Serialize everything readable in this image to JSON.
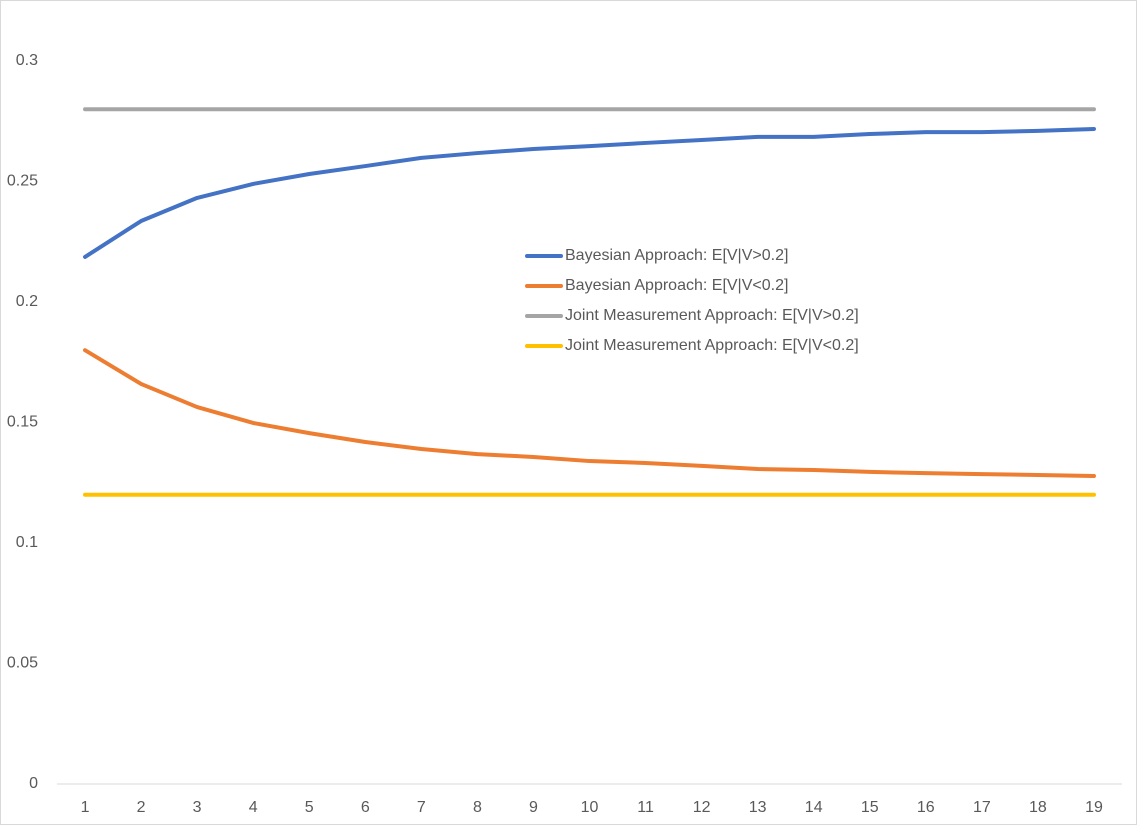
{
  "chart_data": {
    "type": "line",
    "categories": [
      1,
      2,
      3,
      4,
      5,
      6,
      7,
      8,
      9,
      10,
      11,
      12,
      13,
      14,
      15,
      16,
      17,
      18,
      19
    ],
    "series": [
      {
        "name": "Bayesian Approach: E[V|V>0.2]",
        "color": "#4472c4",
        "values": [
          0.2187,
          0.2336,
          0.2432,
          0.249,
          0.2531,
          0.2564,
          0.2598,
          0.2618,
          0.2635,
          0.2647,
          0.266,
          0.2672,
          0.2685,
          0.2685,
          0.2697,
          0.2705,
          0.2705,
          0.271,
          0.2718
        ]
      },
      {
        "name": "Bayesian Approach: E[V|V<0.2]",
        "color": "#ed7d31",
        "values": [
          0.18,
          0.166,
          0.1564,
          0.1498,
          0.1456,
          0.1419,
          0.139,
          0.1369,
          0.1357,
          0.134,
          0.1332,
          0.132,
          0.1307,
          0.1303,
          0.1295,
          0.129,
          0.1286,
          0.1282,
          0.1278
        ]
      },
      {
        "name": "Joint Measurement Approach: E[V|V>0.2]",
        "color": "#a5a5a5",
        "values": [
          0.28,
          0.28,
          0.28,
          0.28,
          0.28,
          0.28,
          0.28,
          0.28,
          0.28,
          0.28,
          0.28,
          0.28,
          0.28,
          0.28,
          0.28,
          0.28,
          0.28,
          0.28,
          0.28
        ]
      },
      {
        "name": "Joint Measurement Approach: E[V|V<0.2]",
        "color": "#ffc000",
        "values": [
          0.12,
          0.12,
          0.12,
          0.12,
          0.12,
          0.12,
          0.12,
          0.12,
          0.12,
          0.12,
          0.12,
          0.12,
          0.12,
          0.12,
          0.12,
          0.12,
          0.12,
          0.12,
          0.12
        ]
      }
    ],
    "ylim": [
      0,
      0.3
    ],
    "yticks": [
      0,
      0.05,
      0.1,
      0.15,
      0.2,
      0.25,
      0.3
    ],
    "grid": false,
    "legend": "center"
  }
}
